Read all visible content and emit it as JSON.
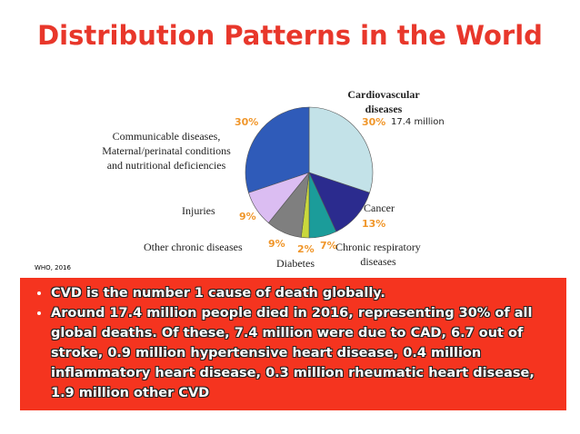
{
  "title": "Distribution Patterns in the World",
  "chart_data": {
    "type": "pie",
    "categories": [
      "Cardiovascular diseases",
      "Cancer",
      "Chronic respiratory diseases",
      "Diabetes",
      "Other chronic diseases",
      "Injuries",
      "Communicable diseases, Maternal/perinatal conditions and nutritional deficiencies"
    ],
    "values": [
      30,
      13,
      7,
      2,
      9,
      9,
      30
    ],
    "value_labels": [
      "30%",
      "13%",
      "7%",
      "2%",
      "9%",
      "9%",
      "30%"
    ],
    "colors": [
      "#c3e2e8",
      "#2b2b8e",
      "#1b9c9a",
      "#c9d83c",
      "#7f7f7f",
      "#dbbdf2",
      "#2f5bb9"
    ],
    "annotation": "17.4 million"
  },
  "source": "WHO, 2016",
  "bullets": [
    "CVD is the number 1 cause of death globally.",
    "Around 17.4 million people died in 2016, representing 30% of all global deaths. Of these, 7.4 million were due to CAD, 6.7 out of stroke, 0.9 million hypertensive heart disease, 0.4 million inflammatory heart disease, 0.3 million rheumatic heart disease, 1.9 million other CVD"
  ]
}
